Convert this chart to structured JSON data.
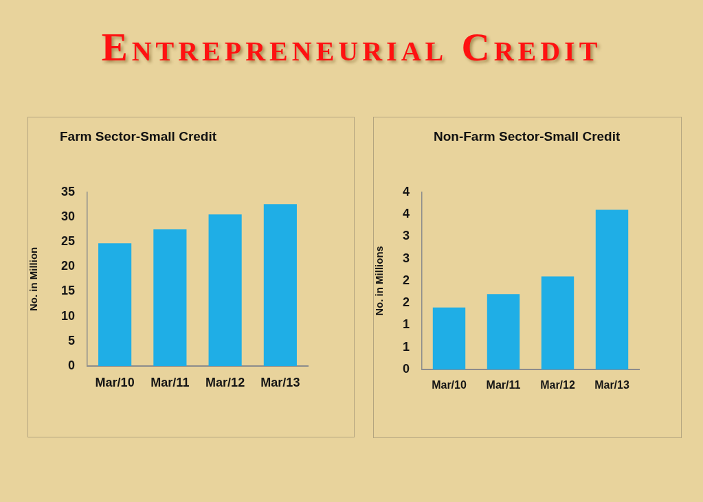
{
  "chart_data": [
    {
      "type": "other",
      "title": "Entrepreneurial Credit"
    },
    {
      "type": "bar",
      "title": "Farm Sector-Small Credit",
      "ylabel": "No. in Million",
      "categories": [
        "Mar/10",
        "Mar/11",
        "Mar/12",
        "Mar/13"
      ],
      "values": [
        24.7,
        27.5,
        30.5,
        32.6
      ],
      "color": "#1faee6",
      "ylim": [
        0,
        35
      ],
      "yticks": [
        0,
        5,
        10,
        15,
        20,
        25,
        30,
        35
      ]
    },
    {
      "type": "bar",
      "title": "Non-Farm Sector-Small Credit",
      "ylabel": "No. in Millions",
      "categories": [
        "Mar/10",
        "Mar/11",
        "Mar/12",
        "Mar/13"
      ],
      "values": [
        1.4,
        1.7,
        2.1,
        3.6
      ],
      "color": "#1faee6",
      "ylim": [
        0,
        4
      ],
      "yticks": [
        0,
        {
          "value": 0.5,
          "label": "1"
        },
        1,
        {
          "value": 1.5,
          "label": "2"
        },
        2,
        {
          "value": 2.5,
          "label": "3"
        },
        3,
        {
          "value": 3.5,
          "label": "4"
        },
        4
      ]
    }
  ]
}
